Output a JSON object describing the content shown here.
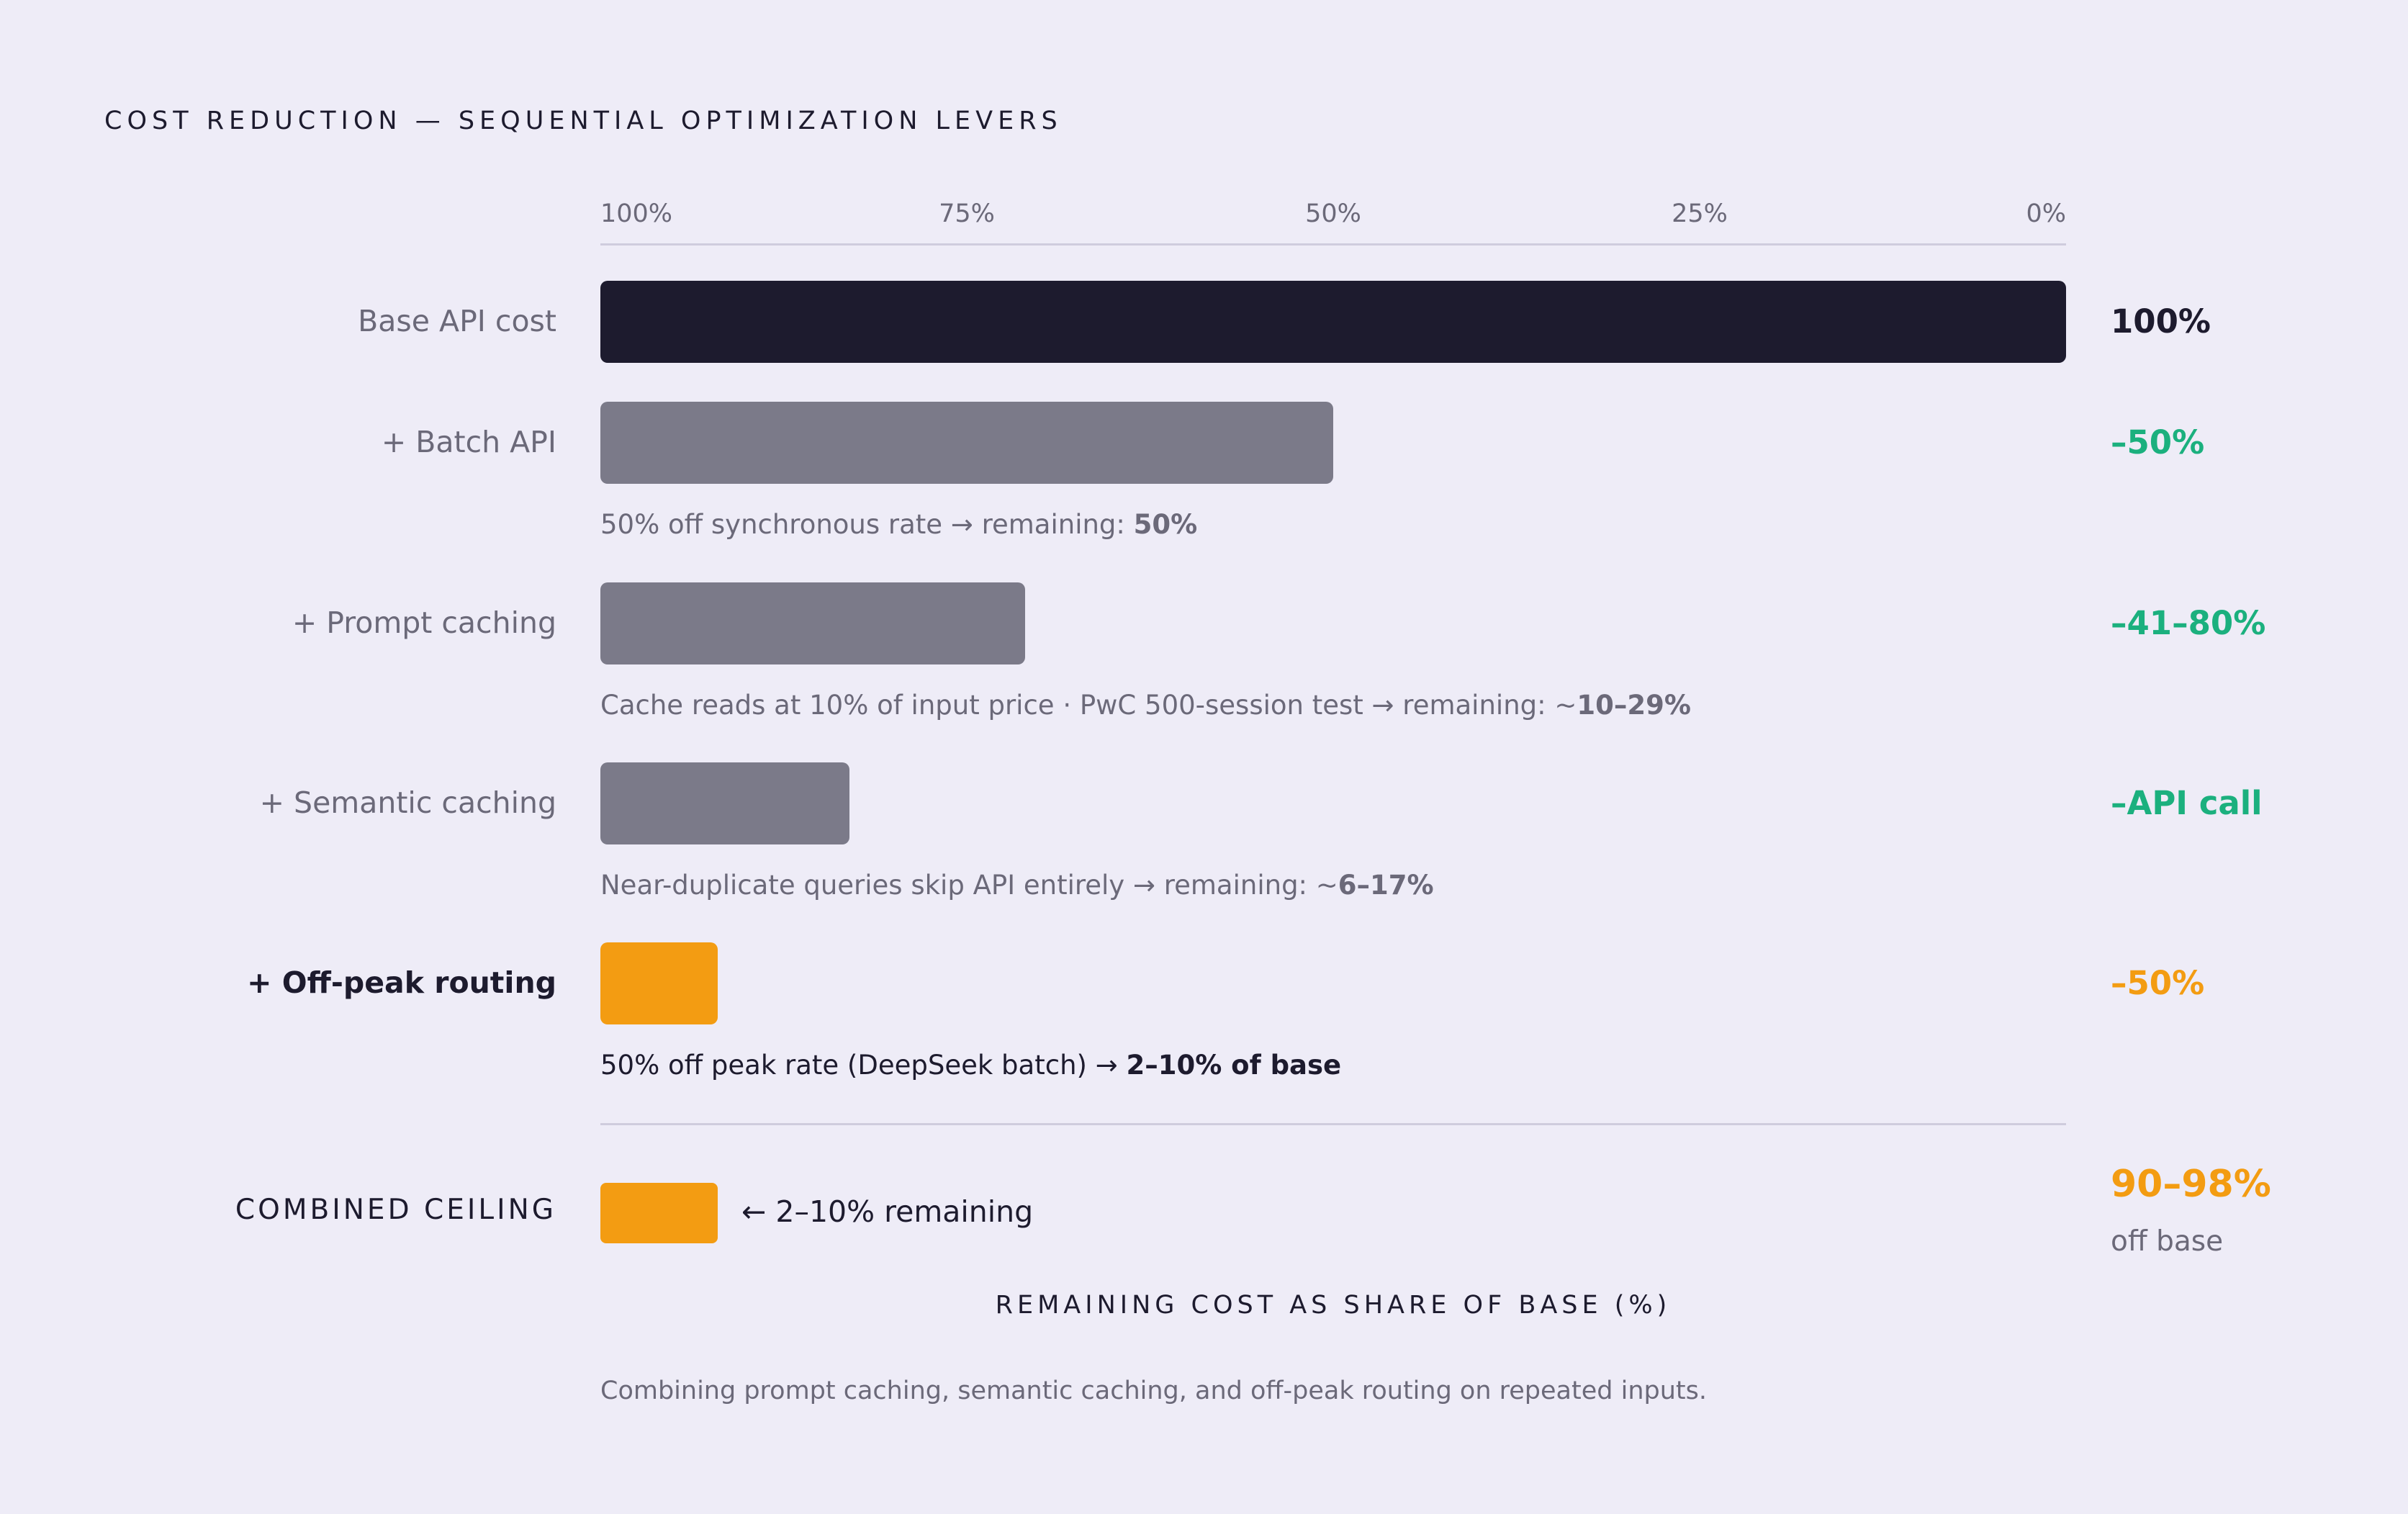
{
  "title": "COST REDUCTION — SEQUENTIAL OPTIMIZATION LEVERS",
  "colors": {
    "base": "#1d1b2e",
    "lever": "#7b7a89",
    "highlight": "#f39c12",
    "saving": "#1bb07e",
    "text_dark": "#1d1b2e",
    "text_muted": "#6b6979"
  },
  "chart_data": {
    "type": "bar",
    "orientation": "horizontal",
    "x_axis_direction": "reversed",
    "title": "COST REDUCTION — SEQUENTIAL OPTIMIZATION LEVERS",
    "xlabel": "REMAINING COST AS SHARE OF BASE (%)",
    "xlim": [
      100,
      0
    ],
    "ticks": [
      "100%",
      "75%",
      "50%",
      "25%",
      "0%"
    ],
    "categories": [
      "Base API cost",
      "+ Batch API",
      "+ Prompt caching",
      "+ Semantic caching",
      "+ Off-peak routing"
    ],
    "values": [
      100,
      50,
      29,
      17,
      8
    ],
    "bars": [
      {
        "label": "Base API cost",
        "value": 100,
        "reduction": "100%",
        "note_text": "",
        "note_bold": "",
        "style": "base",
        "reduction_style": "base"
      },
      {
        "label": "+ Batch API",
        "value": 50,
        "reduction": "–50%",
        "note_text": "50% off synchronous rate → remaining: ",
        "note_bold": "50%",
        "style": "lever",
        "reduction_style": "saving"
      },
      {
        "label": "+ Prompt caching",
        "value": 29,
        "reduction": "–41–80%",
        "note_text": "Cache reads at 10% of input price  ·  PwC 500-session test → remaining: ~",
        "note_bold": "10–29%",
        "style": "lever",
        "reduction_style": "saving"
      },
      {
        "label": "+ Semantic caching",
        "value": 17,
        "reduction": "–API call",
        "note_text": "Near-duplicate queries skip API entirely → remaining: ~",
        "note_bold": "6–17%",
        "style": "lever",
        "reduction_style": "saving"
      },
      {
        "label": "+ Off-peak routing",
        "value": 8,
        "reduction": "–50%",
        "note_text": "50% off peak rate (DeepSeek batch) → ",
        "note_bold": "2–10% of base",
        "style": "highlight",
        "reduction_style": "highlight"
      }
    ],
    "combined": {
      "label": "COMBINED CEILING",
      "value": 8,
      "note": "← 2–10% remaining",
      "reduction": "90–98%",
      "reduction_sub": "off base"
    },
    "caption": "Combining prompt caching, semantic caching, and off-peak routing on repeated inputs."
  }
}
